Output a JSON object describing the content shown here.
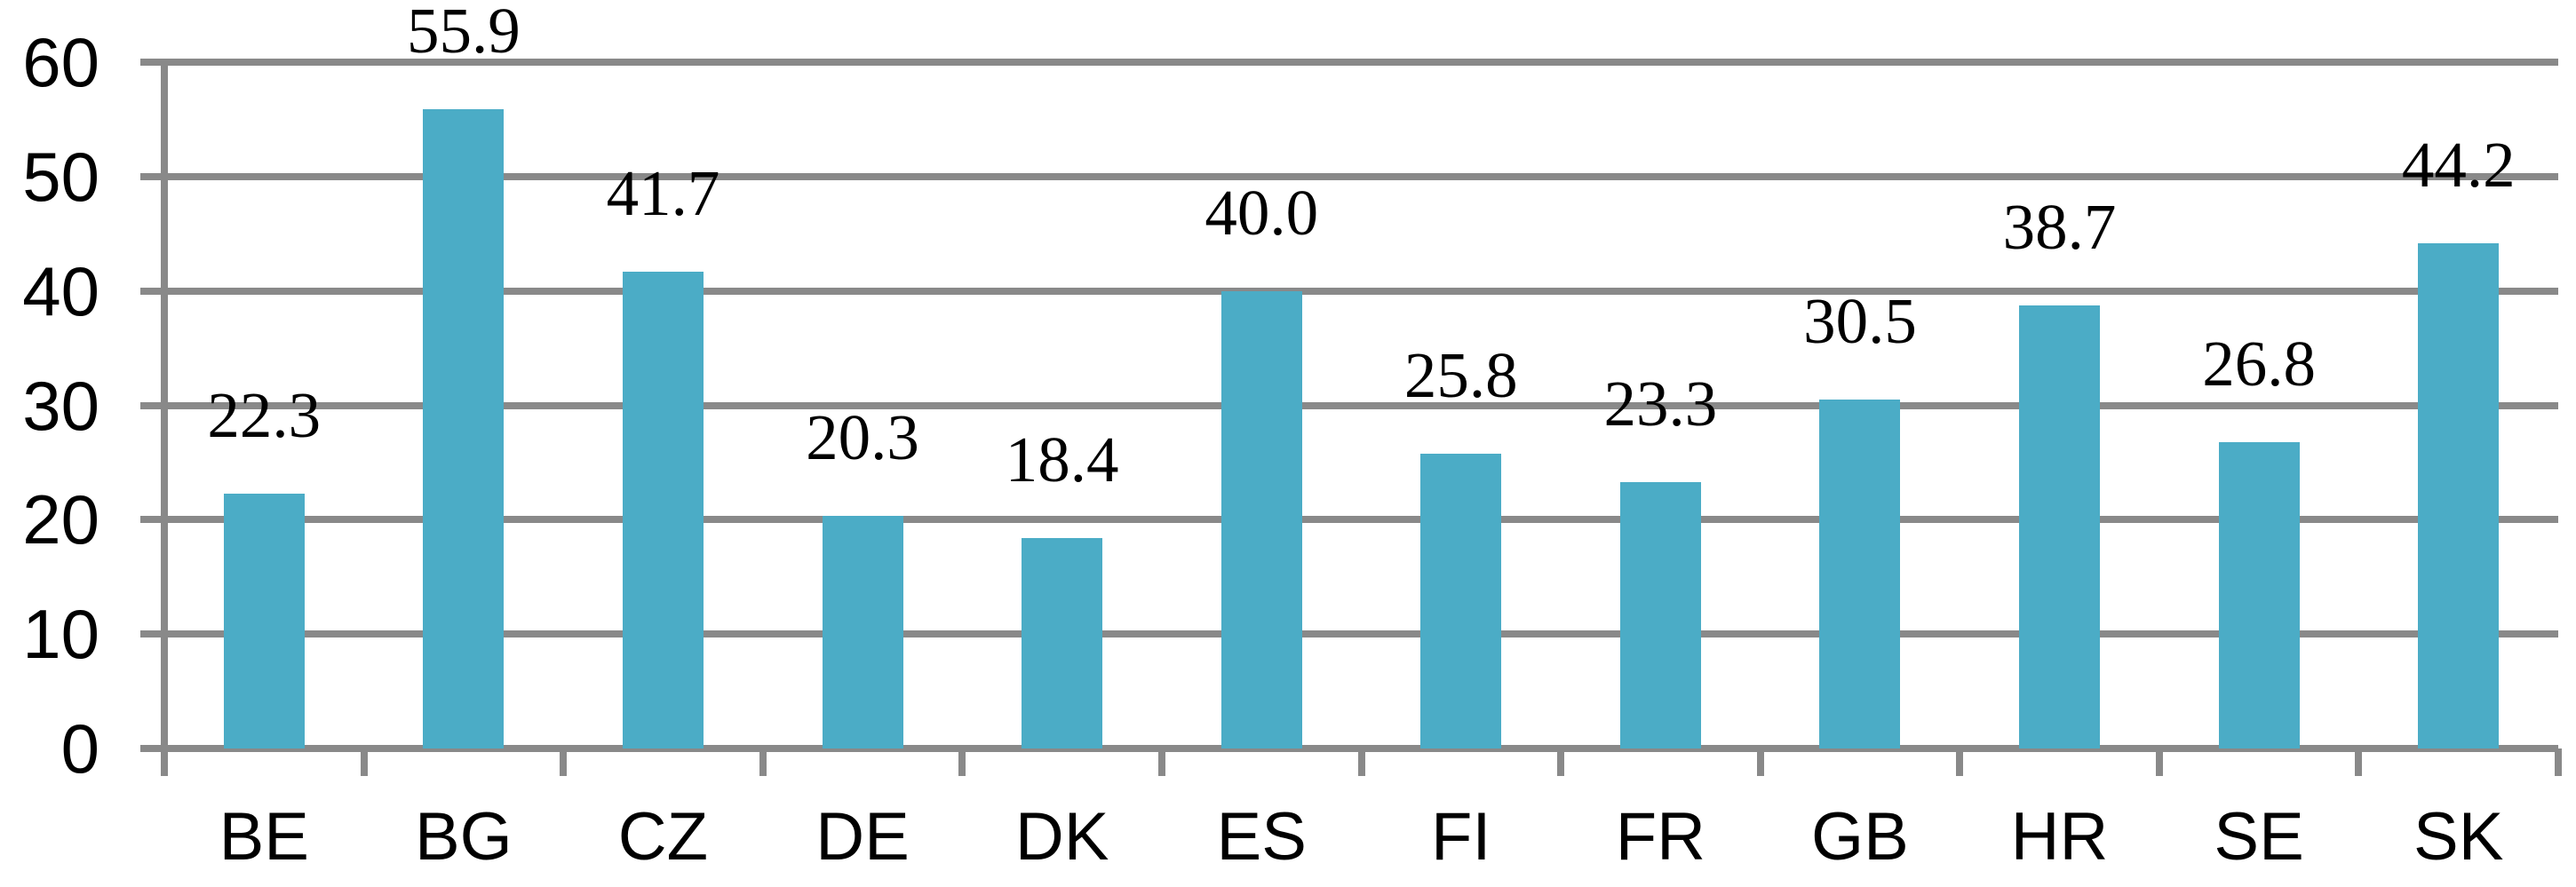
{
  "chart_data": {
    "type": "bar",
    "title": "",
    "xlabel": "",
    "ylabel": "",
    "categories": [
      "BE",
      "BG",
      "CZ",
      "DE",
      "DK",
      "ES",
      "FI",
      "FR",
      "GB",
      "HR",
      "SE",
      "SK"
    ],
    "values": [
      22.3,
      55.9,
      41.7,
      20.3,
      18.4,
      40.0,
      25.8,
      23.3,
      30.5,
      38.7,
      26.8,
      44.2
    ],
    "data_labels": [
      "22.3",
      "55.9",
      "41.7",
      "20.3",
      "18.4",
      "40.0",
      "25.8",
      "23.3",
      "30.5",
      "38.7",
      "26.8",
      "44.2"
    ],
    "ylim": [
      0,
      60
    ],
    "ytick_interval": 10,
    "ytick_labels": [
      "0",
      "10",
      "20",
      "30",
      "40",
      "50",
      "60"
    ],
    "grid": "horizontal",
    "legend": "none",
    "colors": {
      "bar": "#4BACC6",
      "gridline": "#898989",
      "axis": "#898989",
      "text": "#000000",
      "background": "#FFFFFF"
    }
  }
}
